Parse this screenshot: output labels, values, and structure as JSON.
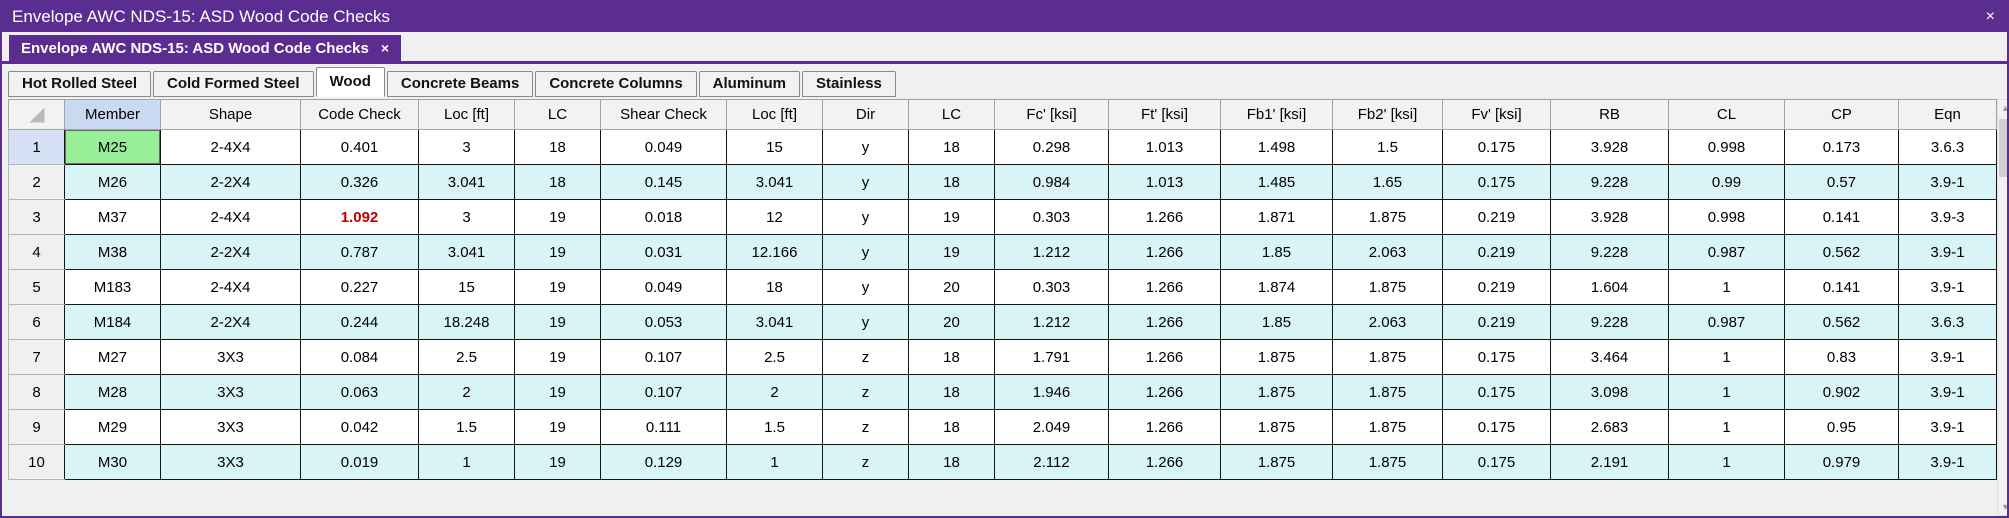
{
  "window": {
    "title": "Envelope AWC NDS-15: ASD Wood Code Checks",
    "close_label": "×"
  },
  "doc_tab": {
    "label": "Envelope AWC NDS-15: ASD Wood Code Checks",
    "close_label": "×"
  },
  "category_tabs": [
    {
      "label": "Hot Rolled Steel",
      "active": false
    },
    {
      "label": "Cold Formed Steel",
      "active": false
    },
    {
      "label": "Wood",
      "active": true
    },
    {
      "label": "Concrete Beams",
      "active": false
    },
    {
      "label": "Concrete Columns",
      "active": false
    },
    {
      "label": "Aluminum",
      "active": false
    },
    {
      "label": "Stainless",
      "active": false
    }
  ],
  "table": {
    "columns": [
      "Member",
      "Shape",
      "Code Check",
      "Loc [ft]",
      "LC",
      "Shear Check",
      "Loc [ft]",
      "Dir",
      "LC",
      "Fc' [ksi]",
      "Ft' [ksi]",
      "Fb1' [ksi]",
      "Fb2' [ksi]",
      "Fv' [ksi]",
      "RB",
      "CL",
      "CP",
      "Eqn"
    ],
    "rows": [
      {
        "num": "1",
        "member_selected": true,
        "code_check_over": false,
        "cells": [
          "M25",
          "2-4X4",
          "0.401",
          "3",
          "18",
          "0.049",
          "15",
          "y",
          "18",
          "0.298",
          "1.013",
          "1.498",
          "1.5",
          "0.175",
          "3.928",
          "0.998",
          "0.173",
          "3.6.3"
        ]
      },
      {
        "num": "2",
        "member_selected": false,
        "code_check_over": false,
        "cells": [
          "M26",
          "2-2X4",
          "0.326",
          "3.041",
          "18",
          "0.145",
          "3.041",
          "y",
          "18",
          "0.984",
          "1.013",
          "1.485",
          "1.65",
          "0.175",
          "9.228",
          "0.99",
          "0.57",
          "3.9-1"
        ]
      },
      {
        "num": "3",
        "member_selected": false,
        "code_check_over": true,
        "cells": [
          "M37",
          "2-4X4",
          "1.092",
          "3",
          "19",
          "0.018",
          "12",
          "y",
          "19",
          "0.303",
          "1.266",
          "1.871",
          "1.875",
          "0.219",
          "3.928",
          "0.998",
          "0.141",
          "3.9-3"
        ]
      },
      {
        "num": "4",
        "member_selected": false,
        "code_check_over": false,
        "cells": [
          "M38",
          "2-2X4",
          "0.787",
          "3.041",
          "19",
          "0.031",
          "12.166",
          "y",
          "19",
          "1.212",
          "1.266",
          "1.85",
          "2.063",
          "0.219",
          "9.228",
          "0.987",
          "0.562",
          "3.9-1"
        ]
      },
      {
        "num": "5",
        "member_selected": false,
        "code_check_over": false,
        "cells": [
          "M183",
          "2-4X4",
          "0.227",
          "15",
          "19",
          "0.049",
          "18",
          "y",
          "20",
          "0.303",
          "1.266",
          "1.874",
          "1.875",
          "0.219",
          "1.604",
          "1",
          "0.141",
          "3.9-1"
        ]
      },
      {
        "num": "6",
        "member_selected": false,
        "code_check_over": false,
        "cells": [
          "M184",
          "2-2X4",
          "0.244",
          "18.248",
          "19",
          "0.053",
          "3.041",
          "y",
          "20",
          "1.212",
          "1.266",
          "1.85",
          "2.063",
          "0.219",
          "9.228",
          "0.987",
          "0.562",
          "3.6.3"
        ]
      },
      {
        "num": "7",
        "member_selected": false,
        "code_check_over": false,
        "cells": [
          "M27",
          "3X3",
          "0.084",
          "2.5",
          "19",
          "0.107",
          "2.5",
          "z",
          "18",
          "1.791",
          "1.266",
          "1.875",
          "1.875",
          "0.175",
          "3.464",
          "1",
          "0.83",
          "3.9-1"
        ]
      },
      {
        "num": "8",
        "member_selected": false,
        "code_check_over": false,
        "cells": [
          "M28",
          "3X3",
          "0.063",
          "2",
          "19",
          "0.107",
          "2",
          "z",
          "18",
          "1.946",
          "1.266",
          "1.875",
          "1.875",
          "0.175",
          "3.098",
          "1",
          "0.902",
          "3.9-1"
        ]
      },
      {
        "num": "9",
        "member_selected": false,
        "code_check_over": false,
        "cells": [
          "M29",
          "3X3",
          "0.042",
          "1.5",
          "19",
          "0.111",
          "1.5",
          "z",
          "18",
          "2.049",
          "1.266",
          "1.875",
          "1.875",
          "0.175",
          "2.683",
          "1",
          "0.95",
          "3.9-1"
        ]
      },
      {
        "num": "10",
        "member_selected": false,
        "code_check_over": false,
        "cells": [
          "M30",
          "3X3",
          "0.019",
          "1",
          "19",
          "0.129",
          "1",
          "z",
          "18",
          "2.112",
          "1.266",
          "1.875",
          "1.875",
          "0.175",
          "2.191",
          "1",
          "0.979",
          "3.9-1"
        ]
      }
    ]
  },
  "icons": {
    "scroll_up": "▲",
    "scroll_down": "▼"
  },
  "colors": {
    "accent_purple": "#5c2d91",
    "selected_cell_green": "#97ef97",
    "overstress_red": "#c00000",
    "alt_row_cyan": "#d9f4f7",
    "member_header_blue": "#c9d9f2"
  }
}
